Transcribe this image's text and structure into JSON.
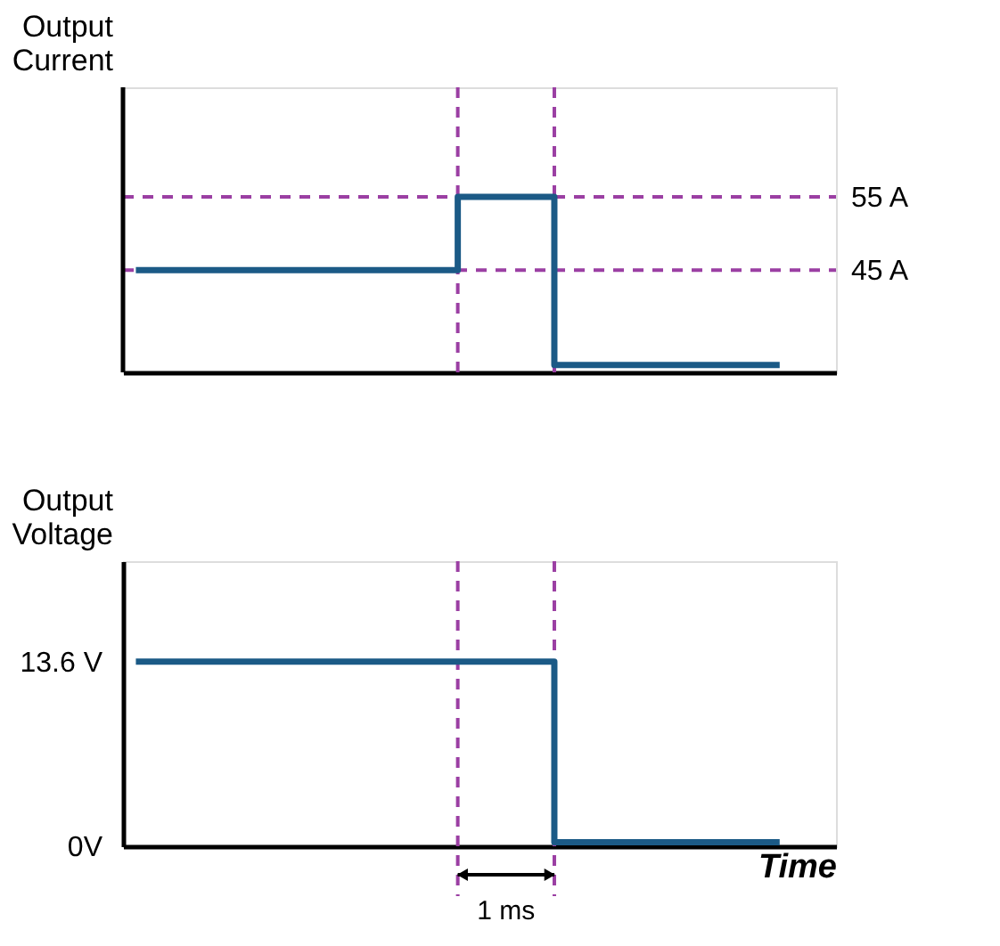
{
  "chart_data": [
    {
      "type": "step",
      "ylabel": "Output Current",
      "categories": [
        null,
        null,
        null,
        null,
        null,
        null,
        null,
        null,
        null,
        null,
        null,
        null,
        null,
        null,
        null,
        null,
        null,
        null,
        null,
        null,
        null
      ],
      "series": [
        {
          "color": "#1b5a86",
          "values": [
            45,
            45,
            45,
            45,
            45,
            45,
            45,
            45,
            45,
            45,
            55,
            55,
            55,
            32,
            32,
            32,
            32,
            32,
            32,
            32,
            32
          ]
        }
      ],
      "ylim": [
        31,
        70
      ],
      "yticks": [
        {
          "value": 55,
          "label": "55 A"
        },
        {
          "value": 45,
          "label": "45 A"
        }
      ],
      "tick_labels": "y",
      "ref_lines": [
        {
          "axis": "y",
          "value": 55,
          "color": "#9b3fa3",
          "line_style": "dashed"
        },
        {
          "axis": "y",
          "value": 45,
          "color": "#9b3fa3",
          "line_style": "dashed"
        }
      ]
    },
    {
      "type": "step",
      "ylabel": "Output Voltage",
      "xlabel": "Time",
      "categories": [
        null,
        null,
        null,
        null,
        null,
        null,
        null,
        null,
        null,
        null,
        null,
        null,
        null,
        null,
        null,
        null,
        null,
        null,
        null,
        null,
        null
      ],
      "values": [
        13.6,
        13.6,
        13.6,
        13.6,
        13.6,
        13.6,
        13.6,
        13.6,
        13.6,
        13.6,
        13.6,
        13.6,
        13.6,
        0.3,
        0.3,
        0.3,
        0.3,
        0.3,
        0.3,
        0.3,
        0.3
      ],
      "color": "#1b5a86",
      "ylim": [
        0,
        21
      ],
      "yticks": [
        {
          "value": 0,
          "label": "0V"
        },
        {
          "value": 13.6,
          "label": "13.6 V"
        }
      ],
      "tick_labels": "y",
      "annotations": [
        "1 ms"
      ]
    }
  ]
}
